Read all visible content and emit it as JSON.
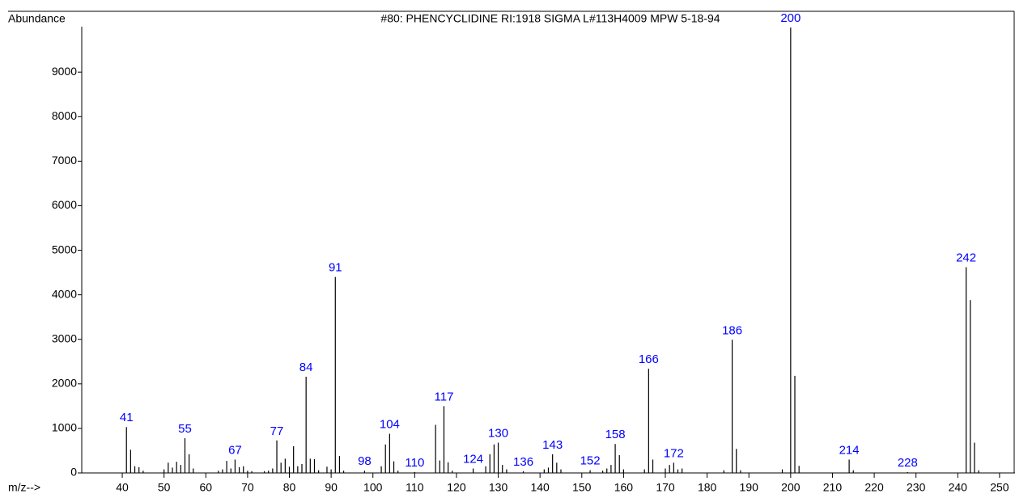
{
  "chart_data": {
    "type": "bar",
    "title": "#80: PHENCYCLIDINE RI:1918 SIGMA L#113H4009 MPW 5-18-94",
    "ylabel": "Abundance",
    "xlabel": "m/z-->",
    "color": "#000000",
    "label_color": "#0000ff",
    "x": [
      41,
      42,
      43,
      44,
      45,
      50,
      51,
      52,
      53,
      54,
      55,
      56,
      57,
      63,
      64,
      65,
      66,
      67,
      68,
      69,
      70,
      71,
      74,
      75,
      76,
      77,
      78,
      79,
      80,
      81,
      82,
      83,
      84,
      85,
      86,
      87,
      89,
      90,
      91,
      92,
      93,
      98,
      102,
      103,
      104,
      105,
      106,
      110,
      115,
      116,
      117,
      118,
      119,
      124,
      127,
      128,
      129,
      130,
      131,
      132,
      136,
      141,
      142,
      143,
      144,
      145,
      152,
      155,
      156,
      157,
      158,
      159,
      160,
      165,
      166,
      167,
      170,
      171,
      172,
      173,
      174,
      184,
      186,
      187,
      188,
      198,
      200,
      201,
      202,
      214,
      215,
      228,
      242,
      243,
      244,
      245
    ],
    "values": [
      1030,
      520,
      150,
      130,
      50,
      80,
      230,
      120,
      250,
      180,
      780,
      420,
      100,
      50,
      80,
      270,
      100,
      300,
      130,
      150,
      50,
      40,
      40,
      50,
      100,
      730,
      230,
      320,
      140,
      600,
      150,
      200,
      2160,
      320,
      310,
      60,
      140,
      80,
      4400,
      380,
      50,
      50,
      150,
      640,
      880,
      260,
      50,
      20,
      1080,
      280,
      1500,
      240,
      50,
      100,
      150,
      420,
      640,
      680,
      180,
      80,
      40,
      80,
      120,
      420,
      230,
      80,
      60,
      50,
      100,
      180,
      650,
      400,
      80,
      80,
      2340,
      300,
      100,
      180,
      230,
      80,
      100,
      60,
      2990,
      540,
      60,
      80,
      10000,
      2180,
      160,
      300,
      60,
      20,
      4620,
      3880,
      680,
      60
    ],
    "labeled": [
      41,
      55,
      67,
      77,
      84,
      91,
      98,
      104,
      110,
      117,
      124,
      130,
      136,
      143,
      152,
      158,
      166,
      172,
      186,
      200,
      214,
      228,
      242
    ],
    "xlim": [
      30.3,
      253.7
    ],
    "ylim": [
      0,
      10020
    ],
    "xticks": [
      40,
      50,
      60,
      70,
      80,
      90,
      100,
      110,
      120,
      130,
      140,
      150,
      160,
      170,
      180,
      190,
      200,
      210,
      220,
      230,
      240,
      250
    ],
    "yticks": [
      0,
      1000,
      2000,
      3000,
      4000,
      5000,
      6000,
      7000,
      8000,
      9000
    ]
  }
}
